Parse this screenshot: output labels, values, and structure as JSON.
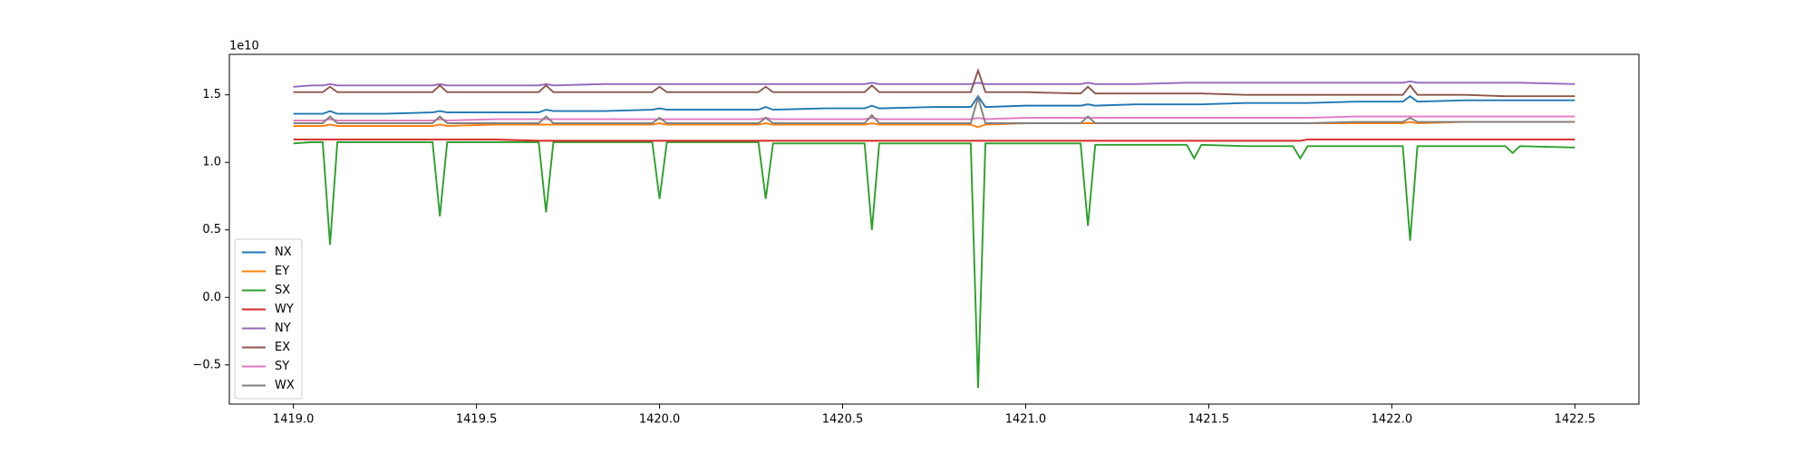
{
  "chart_data": {
    "type": "line",
    "offset_text": "1e10",
    "x": [
      1419.0,
      1419.05,
      1419.08,
      1419.1,
      1419.12,
      1419.25,
      1419.38,
      1419.4,
      1419.42,
      1419.55,
      1419.67,
      1419.69,
      1419.71,
      1419.85,
      1419.98,
      1420.0,
      1420.02,
      1420.15,
      1420.27,
      1420.29,
      1420.31,
      1420.45,
      1420.56,
      1420.58,
      1420.6,
      1420.75,
      1420.85,
      1420.87,
      1420.89,
      1421.0,
      1421.15,
      1421.17,
      1421.19,
      1421.3,
      1421.44,
      1421.46,
      1421.48,
      1421.6,
      1421.73,
      1421.75,
      1421.77,
      1421.9,
      1422.03,
      1422.05,
      1422.07,
      1422.2,
      1422.31,
      1422.33,
      1422.35,
      1422.5
    ],
    "series": [
      {
        "name": "NX",
        "color": "#1f77b4",
        "values": [
          1.36,
          1.36,
          1.36,
          1.38,
          1.36,
          1.36,
          1.37,
          1.38,
          1.37,
          1.37,
          1.37,
          1.39,
          1.38,
          1.38,
          1.39,
          1.4,
          1.39,
          1.39,
          1.39,
          1.41,
          1.39,
          1.4,
          1.4,
          1.42,
          1.4,
          1.41,
          1.41,
          1.49,
          1.41,
          1.42,
          1.42,
          1.43,
          1.42,
          1.43,
          1.43,
          1.43,
          1.43,
          1.44,
          1.44,
          1.44,
          1.44,
          1.45,
          1.45,
          1.49,
          1.45,
          1.46,
          1.46,
          1.46,
          1.46,
          1.46
        ]
      },
      {
        "name": "EY",
        "color": "#ff7f0e",
        "values": [
          1.27,
          1.27,
          1.27,
          1.28,
          1.27,
          1.27,
          1.27,
          1.28,
          1.27,
          1.28,
          1.28,
          1.28,
          1.28,
          1.28,
          1.28,
          1.29,
          1.28,
          1.28,
          1.28,
          1.29,
          1.28,
          1.28,
          1.28,
          1.29,
          1.28,
          1.28,
          1.28,
          1.26,
          1.28,
          1.29,
          1.29,
          1.29,
          1.29,
          1.29,
          1.29,
          1.29,
          1.29,
          1.29,
          1.29,
          1.29,
          1.29,
          1.29,
          1.29,
          1.3,
          1.29,
          1.3,
          1.3,
          1.3,
          1.3,
          1.3
        ]
      },
      {
        "name": "SX",
        "color": "#2ca02c",
        "values": [
          1.14,
          1.15,
          1.15,
          0.39,
          1.15,
          1.15,
          1.15,
          0.6,
          1.15,
          1.15,
          1.15,
          0.63,
          1.15,
          1.15,
          1.15,
          0.73,
          1.15,
          1.15,
          1.15,
          0.73,
          1.14,
          1.14,
          1.14,
          0.5,
          1.14,
          1.14,
          1.14,
          -0.67,
          1.14,
          1.14,
          1.14,
          0.53,
          1.13,
          1.13,
          1.13,
          1.03,
          1.13,
          1.12,
          1.12,
          1.03,
          1.12,
          1.12,
          1.12,
          0.42,
          1.12,
          1.12,
          1.12,
          1.07,
          1.12,
          1.11
        ]
      },
      {
        "name": "WY",
        "color": "#d62728",
        "values": [
          1.17,
          1.17,
          1.17,
          1.17,
          1.17,
          1.17,
          1.17,
          1.17,
          1.17,
          1.17,
          1.16,
          1.16,
          1.16,
          1.16,
          1.16,
          1.16,
          1.16,
          1.16,
          1.16,
          1.16,
          1.16,
          1.16,
          1.16,
          1.16,
          1.16,
          1.16,
          1.16,
          1.16,
          1.16,
          1.16,
          1.16,
          1.16,
          1.16,
          1.16,
          1.16,
          1.16,
          1.16,
          1.16,
          1.16,
          1.16,
          1.17,
          1.17,
          1.17,
          1.17,
          1.17,
          1.17,
          1.17,
          1.17,
          1.17,
          1.17
        ]
      },
      {
        "name": "NY",
        "color": "#9467bd",
        "values": [
          1.56,
          1.57,
          1.57,
          1.58,
          1.57,
          1.57,
          1.57,
          1.58,
          1.57,
          1.57,
          1.57,
          1.58,
          1.57,
          1.58,
          1.58,
          1.58,
          1.58,
          1.58,
          1.58,
          1.58,
          1.58,
          1.58,
          1.58,
          1.59,
          1.58,
          1.58,
          1.58,
          1.59,
          1.58,
          1.58,
          1.58,
          1.59,
          1.58,
          1.58,
          1.59,
          1.59,
          1.59,
          1.59,
          1.59,
          1.59,
          1.59,
          1.59,
          1.59,
          1.6,
          1.59,
          1.59,
          1.59,
          1.59,
          1.59,
          1.58
        ]
      },
      {
        "name": "EX",
        "color": "#8c564b",
        "values": [
          1.52,
          1.52,
          1.52,
          1.56,
          1.52,
          1.52,
          1.52,
          1.57,
          1.52,
          1.52,
          1.52,
          1.57,
          1.52,
          1.52,
          1.52,
          1.56,
          1.52,
          1.52,
          1.52,
          1.56,
          1.52,
          1.52,
          1.52,
          1.57,
          1.52,
          1.52,
          1.52,
          1.68,
          1.52,
          1.52,
          1.51,
          1.56,
          1.51,
          1.51,
          1.51,
          1.51,
          1.51,
          1.5,
          1.5,
          1.5,
          1.5,
          1.5,
          1.5,
          1.57,
          1.5,
          1.5,
          1.49,
          1.49,
          1.49,
          1.49
        ]
      },
      {
        "name": "SY",
        "color": "#e377c2",
        "values": [
          1.31,
          1.31,
          1.31,
          1.32,
          1.31,
          1.31,
          1.31,
          1.32,
          1.31,
          1.32,
          1.32,
          1.32,
          1.32,
          1.32,
          1.32,
          1.32,
          1.32,
          1.32,
          1.32,
          1.33,
          1.32,
          1.32,
          1.32,
          1.33,
          1.32,
          1.32,
          1.32,
          1.33,
          1.32,
          1.33,
          1.33,
          1.33,
          1.33,
          1.33,
          1.33,
          1.33,
          1.33,
          1.33,
          1.33,
          1.33,
          1.33,
          1.34,
          1.34,
          1.34,
          1.34,
          1.34,
          1.34,
          1.34,
          1.34,
          1.34
        ]
      },
      {
        "name": "WX",
        "color": "#7f7f7f",
        "values": [
          1.29,
          1.29,
          1.29,
          1.34,
          1.29,
          1.29,
          1.29,
          1.34,
          1.29,
          1.29,
          1.29,
          1.34,
          1.29,
          1.29,
          1.29,
          1.33,
          1.29,
          1.29,
          1.29,
          1.33,
          1.29,
          1.29,
          1.29,
          1.35,
          1.29,
          1.29,
          1.29,
          1.48,
          1.29,
          1.29,
          1.29,
          1.34,
          1.29,
          1.29,
          1.29,
          1.29,
          1.29,
          1.29,
          1.29,
          1.29,
          1.29,
          1.3,
          1.3,
          1.33,
          1.3,
          1.3,
          1.3,
          1.3,
          1.3,
          1.3
        ]
      }
    ],
    "xlim": [
      1418.825,
      1422.675
    ],
    "xticks": [
      {
        "value": 1419.0,
        "label": "1419.0"
      },
      1419.5,
      {
        "value": 1420.0,
        "label": "1420.0"
      },
      1420.5,
      {
        "value": 1421.0,
        "label": "1421.0"
      },
      1421.5,
      {
        "value": 1422.0,
        "label": "1422.0"
      },
      1422.5
    ],
    "ylim": [
      -0.79,
      1.8
    ],
    "yticks": [
      {
        "value": -0.5,
        "label": "−0.5"
      },
      {
        "value": 0.0,
        "label": "0.0"
      },
      0.5,
      {
        "value": 1.0,
        "label": "1.0"
      },
      1.5
    ],
    "legend": "lower left",
    "grid": false
  }
}
